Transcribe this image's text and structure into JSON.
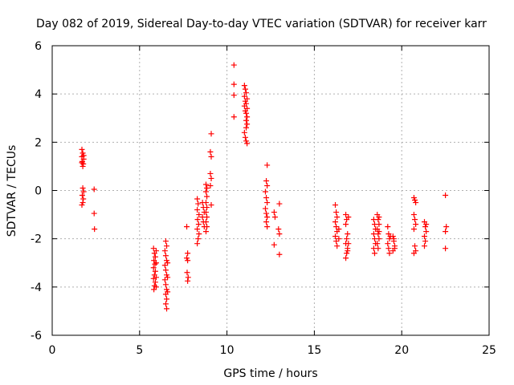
{
  "chart_data": {
    "type": "scatter",
    "title": "Day 082 of 2019, Sidereal Day-to-day VTEC variation (SDTVAR) for receiver karr",
    "xlabel": "GPS time / hours",
    "ylabel": "SDTVAR / TECUs",
    "xlim": [
      0,
      25
    ],
    "ylim": [
      -6,
      6
    ],
    "xticks": [
      0,
      5,
      10,
      15,
      20,
      25
    ],
    "yticks": [
      -6,
      -4,
      -2,
      0,
      2,
      4,
      6
    ],
    "grid": true,
    "marker": "+",
    "color": "#ff0000",
    "series": [
      {
        "name": "SDTVAR",
        "points": [
          [
            1.7,
            1.7
          ],
          [
            1.75,
            1.55
          ],
          [
            1.7,
            1.4
          ],
          [
            1.8,
            1.3
          ],
          [
            1.72,
            1.2
          ],
          [
            1.78,
            1.1
          ],
          [
            1.75,
            1.0
          ],
          [
            1.8,
            1.45
          ],
          [
            1.7,
            1.15
          ],
          [
            1.75,
            0.1
          ],
          [
            1.8,
            -0.05
          ],
          [
            1.72,
            -0.2
          ],
          [
            1.78,
            -0.35
          ],
          [
            1.75,
            -0.5
          ],
          [
            1.7,
            -0.6
          ],
          [
            2.4,
            0.05
          ],
          [
            2.4,
            -0.95
          ],
          [
            2.42,
            -1.6
          ],
          [
            5.8,
            -2.4
          ],
          [
            5.85,
            -2.6
          ],
          [
            5.9,
            -2.75
          ],
          [
            5.82,
            -2.9
          ],
          [
            5.88,
            -3.05
          ],
          [
            5.8,
            -3.2
          ],
          [
            5.9,
            -3.35
          ],
          [
            5.85,
            -3.5
          ],
          [
            5.8,
            -3.65
          ],
          [
            5.9,
            -3.8
          ],
          [
            5.85,
            -3.95
          ],
          [
            5.82,
            -4.1
          ],
          [
            5.95,
            -2.5
          ],
          [
            5.95,
            -3.0
          ],
          [
            5.95,
            -3.6
          ],
          [
            5.95,
            -4.0
          ],
          [
            6.5,
            -2.1
          ],
          [
            6.55,
            -2.3
          ],
          [
            6.45,
            -2.5
          ],
          [
            6.5,
            -2.7
          ],
          [
            6.55,
            -2.9
          ],
          [
            6.45,
            -3.1
          ],
          [
            6.5,
            -3.3
          ],
          [
            6.55,
            -3.5
          ],
          [
            6.45,
            -3.7
          ],
          [
            6.5,
            -3.9
          ],
          [
            6.55,
            -4.1
          ],
          [
            6.5,
            -4.3
          ],
          [
            6.55,
            -4.5
          ],
          [
            6.5,
            -4.7
          ],
          [
            6.55,
            -4.9
          ],
          [
            6.6,
            -3.0
          ],
          [
            6.6,
            -3.6
          ],
          [
            6.6,
            -4.2
          ],
          [
            7.7,
            -1.5
          ],
          [
            7.75,
            -2.6
          ],
          [
            7.7,
            -2.8
          ],
          [
            7.75,
            -2.9
          ],
          [
            7.72,
            -3.4
          ],
          [
            7.78,
            -3.6
          ],
          [
            7.75,
            -3.75
          ],
          [
            8.3,
            -0.35
          ],
          [
            8.35,
            -0.55
          ],
          [
            8.3,
            -0.8
          ],
          [
            8.4,
            -1.0
          ],
          [
            8.32,
            -1.2
          ],
          [
            8.38,
            -1.4
          ],
          [
            8.3,
            -1.6
          ],
          [
            8.4,
            -1.8
          ],
          [
            8.35,
            -2.0
          ],
          [
            8.3,
            -2.2
          ],
          [
            8.6,
            -0.5
          ],
          [
            8.65,
            -0.7
          ],
          [
            8.7,
            -0.9
          ],
          [
            8.6,
            -1.1
          ],
          [
            8.65,
            -1.3
          ],
          [
            8.7,
            -1.5
          ],
          [
            8.8,
            0.25
          ],
          [
            8.85,
            0.1
          ],
          [
            8.8,
            -0.05
          ],
          [
            8.85,
            -0.25
          ],
          [
            8.8,
            -0.5
          ],
          [
            8.85,
            -0.7
          ],
          [
            8.8,
            -0.9
          ],
          [
            8.85,
            -1.1
          ],
          [
            8.8,
            -1.3
          ],
          [
            8.85,
            -1.5
          ],
          [
            8.8,
            -1.7
          ],
          [
            9.1,
            2.35
          ],
          [
            9.05,
            1.6
          ],
          [
            9.1,
            1.4
          ],
          [
            9.05,
            0.7
          ],
          [
            9.1,
            0.5
          ],
          [
            9.05,
            0.2
          ],
          [
            9.1,
            -0.6
          ],
          [
            10.4,
            5.2
          ],
          [
            10.4,
            4.4
          ],
          [
            10.4,
            3.95
          ],
          [
            10.4,
            3.05
          ],
          [
            11.0,
            4.35
          ],
          [
            11.05,
            4.2
          ],
          [
            11.1,
            4.05
          ],
          [
            11.0,
            3.9
          ],
          [
            11.15,
            3.8
          ],
          [
            11.05,
            3.7
          ],
          [
            11.1,
            3.6
          ],
          [
            11.0,
            3.5
          ],
          [
            11.15,
            3.4
          ],
          [
            11.05,
            3.3
          ],
          [
            11.1,
            3.2
          ],
          [
            11.15,
            3.05
          ],
          [
            11.1,
            2.9
          ],
          [
            11.15,
            2.75
          ],
          [
            11.1,
            2.6
          ],
          [
            11.0,
            2.4
          ],
          [
            11.05,
            2.2
          ],
          [
            11.1,
            2.05
          ],
          [
            11.15,
            1.95
          ],
          [
            12.3,
            1.05
          ],
          [
            12.25,
            0.4
          ],
          [
            12.3,
            0.2
          ],
          [
            12.2,
            -0.05
          ],
          [
            12.25,
            -0.3
          ],
          [
            12.3,
            -0.5
          ],
          [
            12.2,
            -0.75
          ],
          [
            12.25,
            -0.95
          ],
          [
            12.3,
            -1.1
          ],
          [
            12.25,
            -1.3
          ],
          [
            12.3,
            -1.5
          ],
          [
            12.7,
            -0.9
          ],
          [
            12.75,
            -1.1
          ],
          [
            12.7,
            -2.25
          ],
          [
            13.0,
            -0.55
          ],
          [
            12.95,
            -1.6
          ],
          [
            13.0,
            -1.8
          ],
          [
            13.0,
            -2.65
          ],
          [
            16.2,
            -0.6
          ],
          [
            16.25,
            -0.9
          ],
          [
            16.3,
            -1.1
          ],
          [
            16.2,
            -1.3
          ],
          [
            16.25,
            -1.5
          ],
          [
            16.3,
            -1.7
          ],
          [
            16.2,
            -1.9
          ],
          [
            16.25,
            -2.1
          ],
          [
            16.3,
            -2.3
          ],
          [
            16.4,
            -1.6
          ],
          [
            16.4,
            -2.0
          ],
          [
            16.8,
            -1.0
          ],
          [
            16.85,
            -1.2
          ],
          [
            16.8,
            -1.4
          ],
          [
            16.9,
            -1.8
          ],
          [
            16.85,
            -2.0
          ],
          [
            16.8,
            -2.2
          ],
          [
            16.9,
            -2.4
          ],
          [
            16.85,
            -2.6
          ],
          [
            16.8,
            -2.8
          ],
          [
            16.9,
            -2.5
          ],
          [
            16.95,
            -1.1
          ],
          [
            16.95,
            -2.2
          ],
          [
            18.4,
            -1.2
          ],
          [
            18.45,
            -1.4
          ],
          [
            18.5,
            -1.6
          ],
          [
            18.4,
            -1.8
          ],
          [
            18.45,
            -2.0
          ],
          [
            18.5,
            -2.2
          ],
          [
            18.4,
            -2.4
          ],
          [
            18.45,
            -2.6
          ],
          [
            18.6,
            -1.0
          ],
          [
            18.65,
            -1.2
          ],
          [
            18.7,
            -1.4
          ],
          [
            18.6,
            -1.6
          ],
          [
            18.65,
            -1.8
          ],
          [
            18.7,
            -2.0
          ],
          [
            18.6,
            -2.2
          ],
          [
            18.65,
            -2.4
          ],
          [
            18.7,
            -1.1
          ],
          [
            18.7,
            -1.7
          ],
          [
            19.2,
            -1.5
          ],
          [
            19.25,
            -1.8
          ],
          [
            19.3,
            -2.0
          ],
          [
            19.2,
            -2.2
          ],
          [
            19.25,
            -2.4
          ],
          [
            19.3,
            -2.6
          ],
          [
            19.35,
            -1.9
          ],
          [
            19.5,
            -1.9
          ],
          [
            19.55,
            -2.1
          ],
          [
            19.6,
            -2.3
          ],
          [
            19.5,
            -2.5
          ],
          [
            19.55,
            -2.0
          ],
          [
            19.6,
            -2.4
          ],
          [
            20.7,
            -0.3
          ],
          [
            20.75,
            -0.4
          ],
          [
            20.8,
            -0.5
          ],
          [
            20.7,
            -1.0
          ],
          [
            20.75,
            -1.2
          ],
          [
            20.8,
            -1.4
          ],
          [
            20.7,
            -1.6
          ],
          [
            20.75,
            -2.3
          ],
          [
            20.8,
            -2.5
          ],
          [
            20.7,
            -2.6
          ],
          [
            21.3,
            -1.3
          ],
          [
            21.35,
            -1.5
          ],
          [
            21.4,
            -1.7
          ],
          [
            21.3,
            -1.9
          ],
          [
            21.35,
            -2.1
          ],
          [
            21.4,
            -1.4
          ],
          [
            21.3,
            -2.3
          ],
          [
            22.5,
            -0.2
          ],
          [
            22.55,
            -1.5
          ],
          [
            22.5,
            -1.7
          ],
          [
            22.5,
            -2.4
          ]
        ]
      }
    ]
  }
}
